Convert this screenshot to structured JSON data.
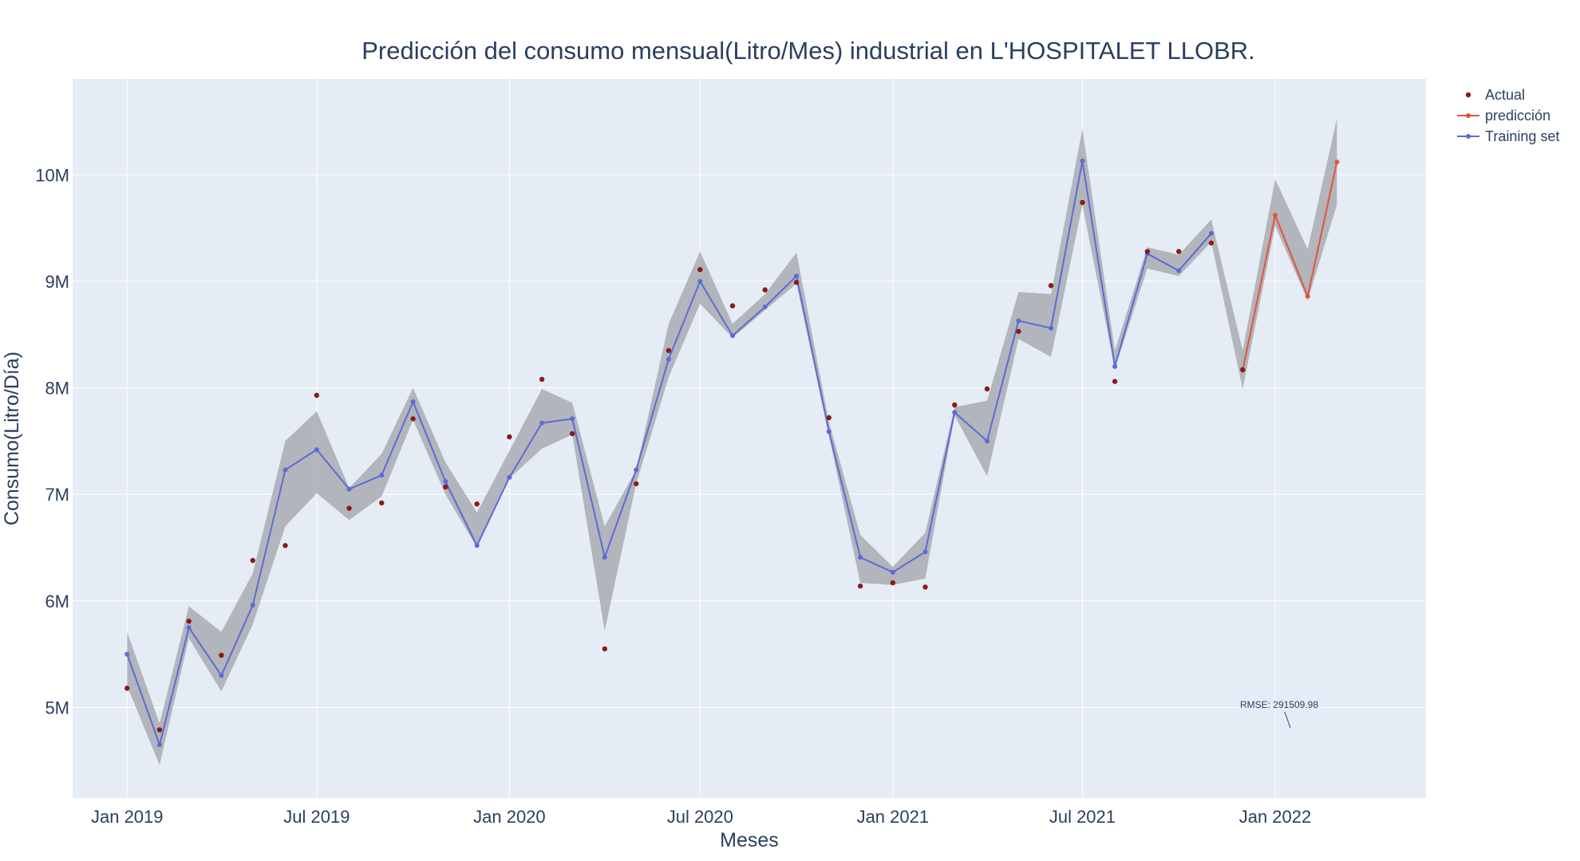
{
  "chart_data": {
    "type": "line",
    "title": "Predicción del consumo mensual(Litro/Mes) industrial en L'HOSPITALET LLOBR.",
    "xlabel": "Meses",
    "ylabel": "Consumo(Litro/Día)",
    "x_ticks": [
      "Jan 2019",
      "Jul 2019",
      "Jan 2020",
      "Jul 2020",
      "Jan 2021",
      "Jul 2021",
      "Jan 2022"
    ],
    "y_ticks": [
      "5M",
      "6M",
      "7M",
      "8M",
      "9M",
      "10M"
    ],
    "ylim": [
      4150000,
      10900000
    ],
    "xlim": [
      "2018-11-10",
      "2022-05-25"
    ],
    "grid": true,
    "legend_position": "top-right",
    "annotation": "RMSE: 291509.98",
    "colors": {
      "actual": "#8b1a1a",
      "prediction": "#e0553d",
      "training": "#5c6bd6",
      "band": "#a9acb0",
      "plot_bg": "#e5ecf6",
      "grid": "#ffffff",
      "text": "#2a3f5f"
    },
    "series": [
      {
        "name": "Actual",
        "mode": "markers",
        "x": [
          "2019-01-01",
          "2019-02-01",
          "2019-03-01",
          "2019-04-01",
          "2019-05-01",
          "2019-06-01",
          "2019-07-01",
          "2019-08-01",
          "2019-09-01",
          "2019-10-01",
          "2019-11-01",
          "2019-12-01",
          "2020-01-01",
          "2020-02-01",
          "2020-03-01",
          "2020-04-01",
          "2020-05-01",
          "2020-06-01",
          "2020-07-01",
          "2020-08-01",
          "2020-09-01",
          "2020-10-01",
          "2020-11-01",
          "2020-12-01",
          "2021-01-01",
          "2021-02-01",
          "2021-03-01",
          "2021-04-01",
          "2021-05-01",
          "2021-06-01",
          "2021-07-01",
          "2021-08-01",
          "2021-09-01",
          "2021-10-01",
          "2021-11-01",
          "2021-12-01"
        ],
        "y": [
          5180000,
          4790000,
          5810000,
          5490000,
          6380000,
          6520000,
          7930000,
          6870000,
          6920000,
          7710000,
          7070000,
          6910000,
          7540000,
          8080000,
          7570000,
          5550000,
          7100000,
          8350000,
          9110000,
          8770000,
          8920000,
          8990000,
          7720000,
          6140000,
          6170000,
          6130000,
          7840000,
          7990000,
          8530000,
          8960000,
          9740000,
          8060000,
          9280000,
          9280000,
          9360000,
          8170000
        ]
      },
      {
        "name": "predicción",
        "mode": "lines+markers",
        "x": [
          "2021-12-01",
          "2022-01-01",
          "2022-02-01",
          "2022-03-01"
        ],
        "y": [
          8170000,
          9620000,
          8860000,
          10120000
        ]
      },
      {
        "name": "Training set",
        "mode": "lines+markers",
        "x": [
          "2019-01-01",
          "2019-02-01",
          "2019-03-01",
          "2019-04-01",
          "2019-05-01",
          "2019-06-01",
          "2019-07-01",
          "2019-08-01",
          "2019-09-01",
          "2019-10-01",
          "2019-11-01",
          "2019-12-01",
          "2020-01-01",
          "2020-02-01",
          "2020-03-01",
          "2020-04-01",
          "2020-05-01",
          "2020-06-01",
          "2020-07-01",
          "2020-08-01",
          "2020-09-01",
          "2020-10-01",
          "2020-11-01",
          "2020-12-01",
          "2021-01-01",
          "2021-02-01",
          "2021-03-01",
          "2021-04-01",
          "2021-05-01",
          "2021-06-01",
          "2021-07-01",
          "2021-08-01",
          "2021-09-01",
          "2021-10-01",
          "2021-11-01"
        ],
        "y": [
          5500000,
          4650000,
          5750000,
          5300000,
          5960000,
          7230000,
          7420000,
          7050000,
          7180000,
          7870000,
          7120000,
          6520000,
          7160000,
          7670000,
          7710000,
          6410000,
          7230000,
          8270000,
          9000000,
          8490000,
          8760000,
          9050000,
          7590000,
          6410000,
          6270000,
          6460000,
          7770000,
          7500000,
          8630000,
          8560000,
          10130000,
          8200000,
          9260000,
          9100000,
          9450000
        ]
      }
    ],
    "band": {
      "x": [
        "2019-01-01",
        "2019-02-01",
        "2019-03-01",
        "2019-04-01",
        "2019-05-01",
        "2019-06-01",
        "2019-07-01",
        "2019-08-01",
        "2019-09-01",
        "2019-10-01",
        "2019-11-01",
        "2019-12-01",
        "2020-01-01",
        "2020-02-01",
        "2020-03-01",
        "2020-04-01",
        "2020-05-01",
        "2020-06-01",
        "2020-07-01",
        "2020-08-01",
        "2020-09-01",
        "2020-10-01",
        "2020-11-01",
        "2020-12-01",
        "2021-01-01",
        "2021-02-01",
        "2021-03-01",
        "2021-04-01",
        "2021-05-01",
        "2021-06-01",
        "2021-07-01",
        "2021-08-01",
        "2021-09-01",
        "2021-10-01",
        "2021-11-01",
        "2021-12-01",
        "2022-01-01",
        "2022-02-01",
        "2022-03-01"
      ],
      "upper": [
        5710000,
        4850000,
        5950000,
        5710000,
        6260000,
        7500000,
        7780000,
        7060000,
        7380000,
        8000000,
        7300000,
        6830000,
        7410000,
        7990000,
        7860000,
        6700000,
        7230000,
        8600000,
        9280000,
        8600000,
        8880000,
        9270000,
        7680000,
        6620000,
        6320000,
        6640000,
        7820000,
        7880000,
        8900000,
        8880000,
        10430000,
        8350000,
        9320000,
        9250000,
        9580000,
        8350000,
        9960000,
        9300000,
        10530000
      ],
      "lower": [
        5200000,
        4460000,
        5650000,
        5150000,
        5780000,
        6700000,
        7010000,
        6760000,
        6980000,
        7700000,
        7000000,
        6500000,
        7150000,
        7430000,
        7560000,
        5720000,
        7100000,
        8100000,
        8790000,
        8470000,
        8730000,
        8980000,
        7550000,
        6170000,
        6150000,
        6210000,
        7740000,
        7170000,
        8460000,
        8290000,
        9720000,
        8180000,
        9120000,
        9050000,
        9370000,
        7990000,
        9520000,
        8820000,
        9720000
      ]
    }
  }
}
